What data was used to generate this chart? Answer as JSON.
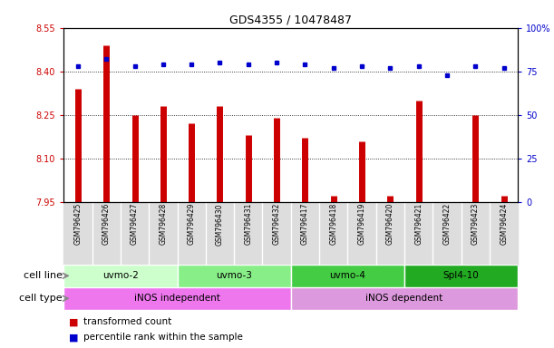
{
  "title": "GDS4355 / 10478487",
  "samples": [
    "GSM796425",
    "GSM796426",
    "GSM796427",
    "GSM796428",
    "GSM796429",
    "GSM796430",
    "GSM796431",
    "GSM796432",
    "GSM796417",
    "GSM796418",
    "GSM796419",
    "GSM796420",
    "GSM796421",
    "GSM796422",
    "GSM796423",
    "GSM796424"
  ],
  "red_values": [
    8.34,
    8.49,
    8.25,
    8.28,
    8.22,
    8.28,
    8.18,
    8.24,
    8.17,
    7.97,
    8.16,
    7.97,
    8.3,
    7.95,
    8.25,
    7.97
  ],
  "blue_values": [
    78,
    82,
    78,
    79,
    79,
    80,
    79,
    80,
    79,
    77,
    78,
    77,
    78,
    73,
    78,
    77
  ],
  "ylim_left": [
    7.95,
    8.55
  ],
  "ylim_right": [
    0,
    100
  ],
  "yticks_left": [
    7.95,
    8.1,
    8.25,
    8.4,
    8.55
  ],
  "yticks_right": [
    0,
    25,
    50,
    75,
    100
  ],
  "ytick_labels_right": [
    "0",
    "25",
    "50",
    "75",
    "100%"
  ],
  "cell_line_groups": [
    {
      "label": "uvmo-2",
      "start": 0,
      "end": 3,
      "color": "#ccffcc"
    },
    {
      "label": "uvmo-3",
      "start": 4,
      "end": 7,
      "color": "#88ee88"
    },
    {
      "label": "uvmo-4",
      "start": 8,
      "end": 11,
      "color": "#44cc44"
    },
    {
      "label": "Spl4-10",
      "start": 12,
      "end": 15,
      "color": "#22aa22"
    }
  ],
  "cell_type_groups": [
    {
      "label": "iNOS independent",
      "start": 0,
      "end": 7,
      "color": "#ee77ee"
    },
    {
      "label": "iNOS dependent",
      "start": 8,
      "end": 15,
      "color": "#dd99dd"
    }
  ],
  "bar_color": "#cc0000",
  "dot_color": "#0000cc",
  "grid_color": "#000000",
  "axis_label_color_left": "#cc0000",
  "axis_label_color_right": "#0000cc",
  "legend_red": "transformed count",
  "legend_blue": "percentile rank within the sample",
  "cell_line_row_label": "cell line",
  "cell_type_row_label": "cell type",
  "sample_bg_color": "#dddddd",
  "arrow_color": "#888888"
}
